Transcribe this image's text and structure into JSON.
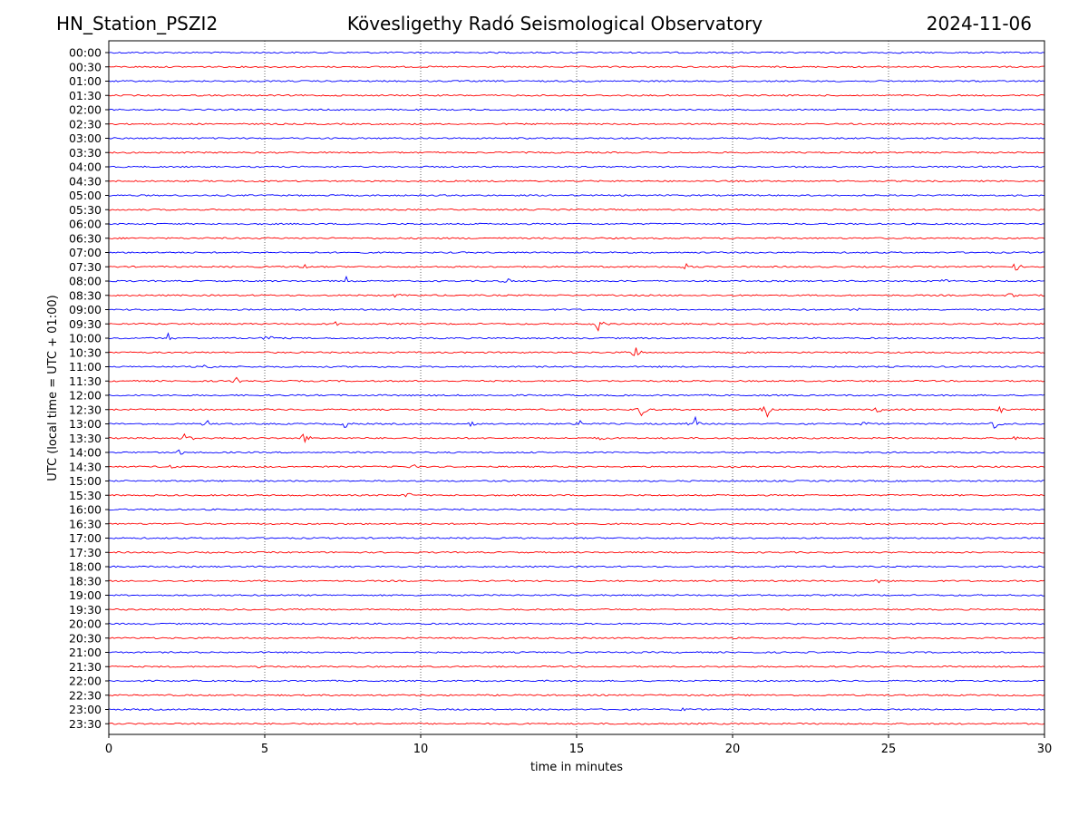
{
  "header": {
    "station": "HN_Station_PSZI2",
    "observatory": "Kövesligethy Radó Seismological Observatory",
    "date": "2024-11-06"
  },
  "chart_data": {
    "type": "line",
    "title": "Kövesligethy Radó Seismological Observatory",
    "xlabel": "time in minutes",
    "ylabel": "UTC (local time = UTC + 01:00)",
    "xlim": [
      0,
      30
    ],
    "xticks": [
      0,
      5,
      10,
      15,
      20,
      25,
      30
    ],
    "grid": "vertical dotted lines at x ticks",
    "row_labels": [
      "00:00",
      "00:30",
      "01:00",
      "01:30",
      "02:00",
      "02:30",
      "03:00",
      "03:30",
      "04:00",
      "04:30",
      "05:00",
      "05:30",
      "06:00",
      "06:30",
      "07:00",
      "07:30",
      "08:00",
      "08:30",
      "09:00",
      "09:30",
      "10:00",
      "10:30",
      "11:00",
      "11:30",
      "12:00",
      "12:30",
      "13:00",
      "13:30",
      "14:00",
      "14:30",
      "15:00",
      "15:30",
      "16:00",
      "16:30",
      "17:00",
      "17:30",
      "18:00",
      "18:30",
      "19:00",
      "19:30",
      "20:00",
      "20:30",
      "21:00",
      "21:30",
      "22:00",
      "22:30",
      "23:00",
      "23:30"
    ],
    "trace_colors": [
      "#0000ff",
      "#ff0000"
    ],
    "events": [
      {
        "row": "07:30",
        "minute": 6.3,
        "amp": 4
      },
      {
        "row": "07:30",
        "minute": 18.5,
        "amp": 4
      },
      {
        "row": "07:30",
        "minute": 29.1,
        "amp": 5
      },
      {
        "row": "08:00",
        "minute": 7.6,
        "amp": 5
      },
      {
        "row": "08:00",
        "minute": 12.8,
        "amp": 3
      },
      {
        "row": "08:00",
        "minute": 26.8,
        "amp": 3
      },
      {
        "row": "08:30",
        "minute": 9.2,
        "amp": 3
      },
      {
        "row": "08:30",
        "minute": 28.9,
        "amp": 3
      },
      {
        "row": "09:00",
        "minute": 24.0,
        "amp": 3
      },
      {
        "row": "09:30",
        "minute": 15.7,
        "amp": 9
      },
      {
        "row": "09:30",
        "minute": 7.3,
        "amp": 3
      },
      {
        "row": "10:00",
        "minute": 1.9,
        "amp": 6
      },
      {
        "row": "10:00",
        "minute": 5.1,
        "amp": 5
      },
      {
        "row": "10:00",
        "minute": 28.0,
        "amp": 3
      },
      {
        "row": "10:30",
        "minute": 16.9,
        "amp": 8
      },
      {
        "row": "11:00",
        "minute": 3.2,
        "amp": 4
      },
      {
        "row": "11:30",
        "minute": 4.1,
        "amp": 4
      },
      {
        "row": "12:30",
        "minute": 17.1,
        "amp": 9
      },
      {
        "row": "12:30",
        "minute": 21.1,
        "amp": 11
      },
      {
        "row": "12:30",
        "minute": 24.7,
        "amp": 6
      },
      {
        "row": "12:30",
        "minute": 28.6,
        "amp": 5
      },
      {
        "row": "13:00",
        "minute": 3.2,
        "amp": 5
      },
      {
        "row": "13:00",
        "minute": 7.6,
        "amp": 5
      },
      {
        "row": "13:00",
        "minute": 11.6,
        "amp": 4
      },
      {
        "row": "13:00",
        "minute": 15.1,
        "amp": 5
      },
      {
        "row": "13:00",
        "minute": 18.8,
        "amp": 9
      },
      {
        "row": "13:00",
        "minute": 24.2,
        "amp": 4
      },
      {
        "row": "13:00",
        "minute": 28.4,
        "amp": 6
      },
      {
        "row": "13:30",
        "minute": 2.5,
        "amp": 9
      },
      {
        "row": "13:30",
        "minute": 6.3,
        "amp": 8
      },
      {
        "row": "13:30",
        "minute": 15.8,
        "amp": 3
      },
      {
        "row": "13:30",
        "minute": 29.1,
        "amp": 3
      },
      {
        "row": "14:00",
        "minute": 2.3,
        "amp": 4
      },
      {
        "row": "14:30",
        "minute": 2.0,
        "amp": 3
      },
      {
        "row": "14:30",
        "minute": 9.8,
        "amp": 3
      },
      {
        "row": "15:30",
        "minute": 9.6,
        "amp": 3
      },
      {
        "row": "18:30",
        "minute": 24.7,
        "amp": 3
      },
      {
        "row": "21:30",
        "minute": 4.8,
        "amp": 3
      },
      {
        "row": "23:00",
        "minute": 18.4,
        "amp": 3
      }
    ]
  }
}
